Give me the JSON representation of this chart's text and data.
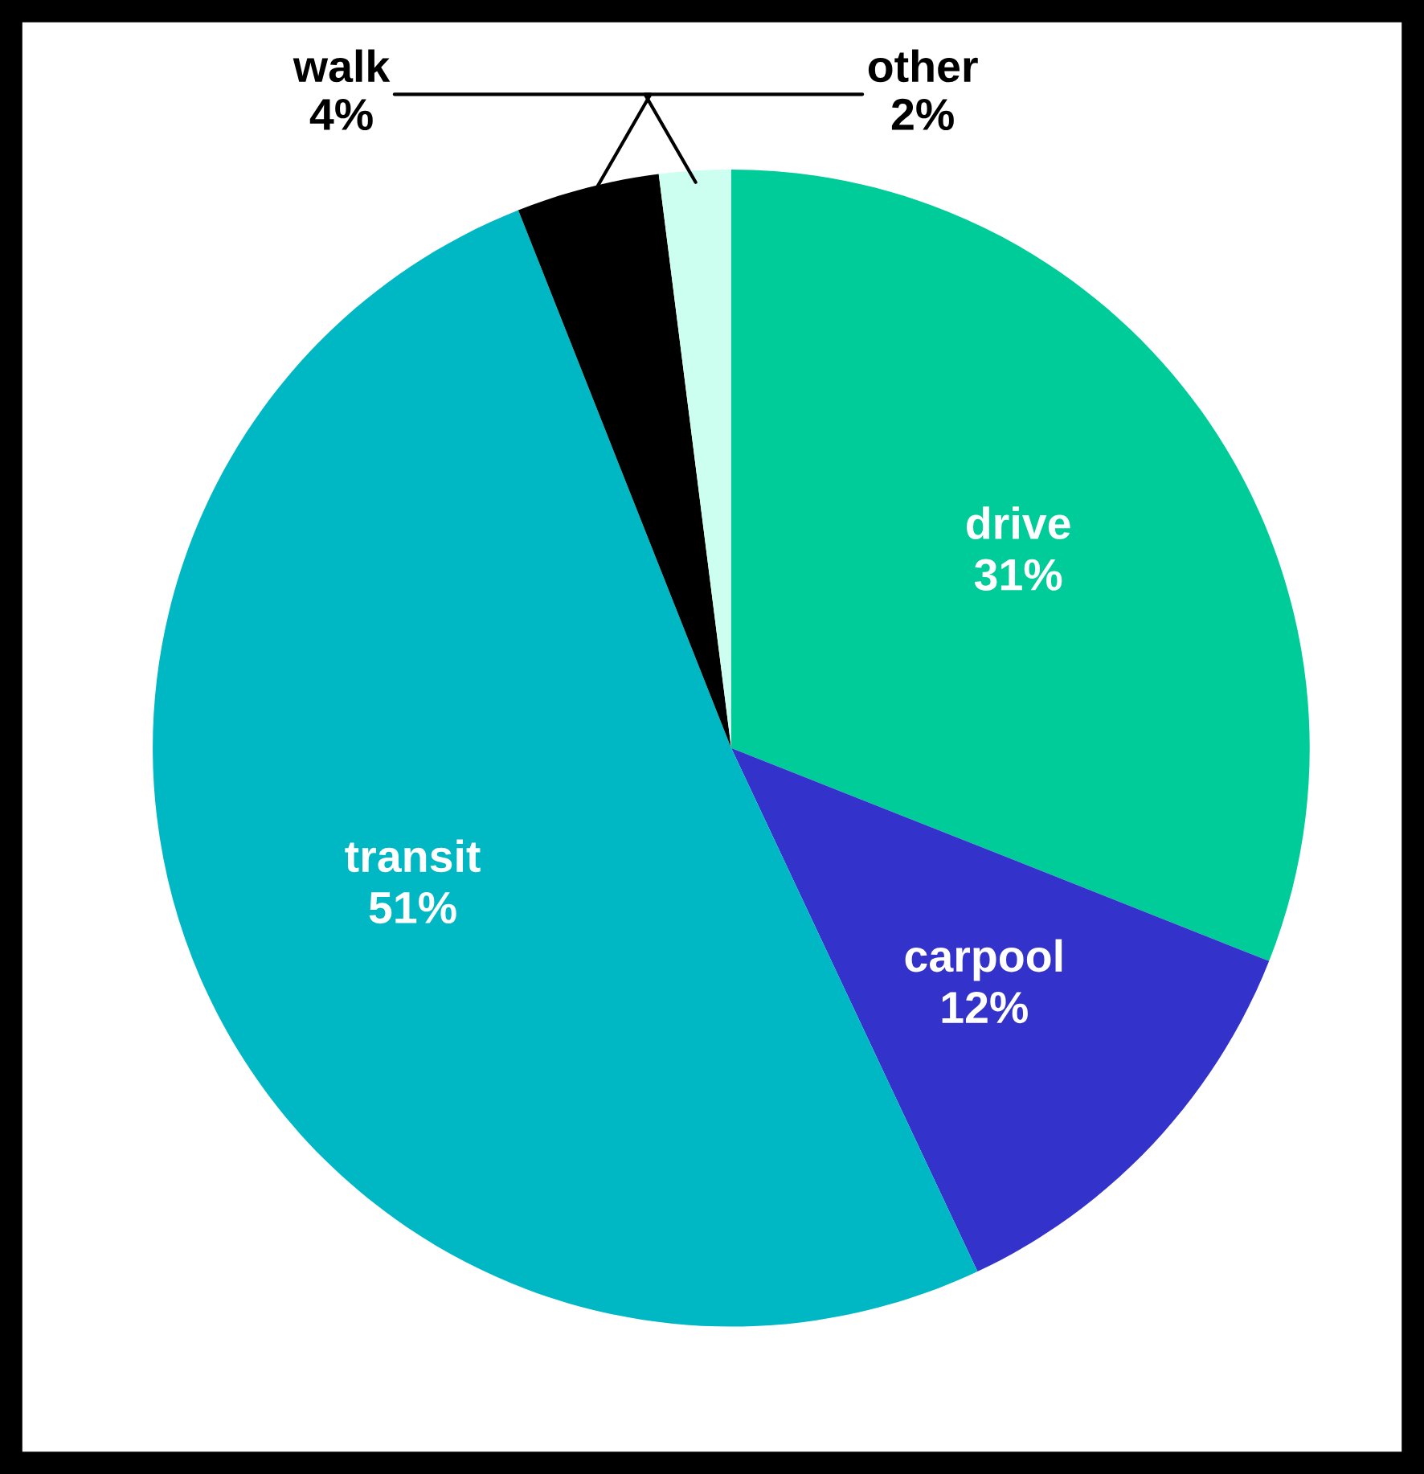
{
  "chart_data": {
    "type": "pie",
    "categories": [
      "drive",
      "carpool",
      "transit",
      "walk",
      "other"
    ],
    "values": [
      31,
      12,
      51,
      4,
      2
    ],
    "value_labels": [
      "31%",
      "12%",
      "51%",
      "4%",
      "2%"
    ],
    "colors": [
      "#00cc99",
      "#3333cc",
      "#00b8c4",
      "#000000",
      "#ccfff0"
    ],
    "legend": false
  }
}
